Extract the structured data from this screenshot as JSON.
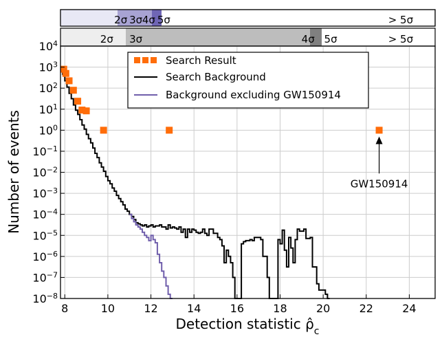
{
  "chart_data": {
    "type": "step",
    "xlabel": "Detection statistic ρ̂",
    "xlabel_subscript": "c",
    "ylabel": "Number of events",
    "xlim": [
      7.8,
      25.2
    ],
    "ylim_log10": [
      -8,
      4
    ],
    "x_ticks": [
      8,
      10,
      12,
      14,
      16,
      18,
      20,
      22,
      24
    ],
    "x_tick_labels": [
      "8",
      "10",
      "12",
      "14",
      "16",
      "18",
      "20",
      "22",
      "24"
    ],
    "y_ticks_log10": [
      -8,
      -7,
      -6,
      -5,
      -4,
      -3,
      -2,
      -1,
      0,
      1,
      2,
      3,
      4
    ],
    "y_tick_base": "10",
    "y_tick_exponents": [
      "−8",
      "−7",
      "−6",
      "−5",
      "−4",
      "−3",
      "−2",
      "−1",
      "0",
      "1",
      "2",
      "3",
      "4"
    ],
    "grid": true,
    "legend_position": "top-center",
    "series": [
      {
        "name": "Search Result",
        "kind": "scatter",
        "color": "#ff6d0a",
        "marker": "square",
        "points": [
          {
            "x": 7.95,
            "y_log10": 2.9
          },
          {
            "x": 8.05,
            "y_log10": 2.7
          },
          {
            "x": 8.2,
            "y_log10": 2.35
          },
          {
            "x": 8.4,
            "y_log10": 1.9
          },
          {
            "x": 8.6,
            "y_log10": 1.38
          },
          {
            "x": 8.8,
            "y_log10": 0.96
          },
          {
            "x": 9.0,
            "y_log10": 0.92
          },
          {
            "x": 9.8,
            "y_log10": 0.0
          },
          {
            "x": 12.85,
            "y_log10": 0.0
          },
          {
            "x": 22.6,
            "y_log10": 0.0
          }
        ]
      },
      {
        "name": "Search Background",
        "kind": "step",
        "color": "#000000",
        "edges": [
          7.8,
          7.9,
          8.0,
          8.1,
          8.2,
          8.3,
          8.4,
          8.5,
          8.6,
          8.7,
          8.8,
          8.9,
          9.0,
          9.1,
          9.2,
          9.3,
          9.4,
          9.5,
          9.6,
          9.7,
          9.8,
          9.9,
          10.0,
          10.1,
          10.2,
          10.3,
          10.4,
          10.5,
          10.6,
          10.7,
          10.8,
          10.9,
          11.0,
          11.1,
          11.2,
          11.3,
          11.4,
          11.5,
          11.6,
          11.7,
          11.8,
          11.9,
          12.0,
          12.1,
          12.2,
          12.3,
          12.4,
          12.5,
          12.6,
          12.7,
          12.8,
          12.9,
          13.0,
          13.1,
          13.2,
          13.3,
          13.4,
          13.5,
          13.6,
          13.7,
          13.8,
          13.9,
          14.0,
          14.1,
          14.2,
          14.3,
          14.4,
          14.5,
          14.6,
          14.7,
          14.8,
          14.9,
          15.0,
          15.1,
          15.2,
          15.3,
          15.4,
          15.5,
          15.6,
          15.7,
          15.8,
          15.9,
          16.0,
          16.1,
          16.2,
          16.3,
          16.4,
          16.5,
          16.6,
          16.7,
          16.8,
          16.9,
          17.0,
          17.1,
          17.2,
          17.3,
          17.4,
          17.5,
          17.6,
          17.7,
          17.8,
          17.9,
          18.0,
          18.1,
          18.2,
          18.3,
          18.4,
          18.5,
          18.6,
          18.7,
          18.8,
          18.9,
          19.0,
          19.1,
          19.2,
          19.3,
          19.4,
          19.5,
          19.6,
          19.7,
          19.8,
          19.9,
          20.0,
          20.1,
          20.2,
          20.3
        ],
        "values_log10": [
          2.9,
          2.65,
          2.35,
          2.05,
          1.75,
          1.5,
          1.2,
          0.95,
          0.75,
          0.5,
          0.25,
          0.05,
          -0.2,
          -0.4,
          -0.6,
          -0.85,
          -1.1,
          -1.3,
          -1.55,
          -1.75,
          -1.95,
          -2.2,
          -2.4,
          -2.55,
          -2.75,
          -2.9,
          -3.1,
          -3.25,
          -3.4,
          -3.55,
          -3.75,
          -3.85,
          -4.0,
          -4.1,
          -4.25,
          -4.4,
          -4.45,
          -4.5,
          -4.55,
          -4.5,
          -4.6,
          -4.55,
          -4.5,
          -4.6,
          -4.55,
          -4.55,
          -4.5,
          -4.6,
          -4.6,
          -4.7,
          -4.5,
          -4.65,
          -4.6,
          -4.65,
          -4.7,
          -4.6,
          -4.85,
          -4.7,
          -5.1,
          -4.7,
          -4.85,
          -4.7,
          -4.75,
          -4.85,
          -4.9,
          -4.85,
          -4.7,
          -4.9,
          -5.0,
          -4.7,
          -4.7,
          -4.9,
          -4.9,
          -5.1,
          -5.2,
          -5.5,
          -6.3,
          -5.7,
          -6.0,
          -6.3,
          -7.0,
          -8.2,
          -8.2,
          -8.2,
          -5.4,
          -5.3,
          -5.25,
          -5.25,
          -5.2,
          -5.25,
          -5.1,
          -5.1,
          -5.1,
          -5.2,
          -6.0,
          -6.0,
          -7.0,
          -8.2,
          -8.2,
          -8.2,
          -8.2,
          -5.2,
          -5.4,
          -4.75,
          -5.7,
          -6.5,
          -5.1,
          -5.6,
          -6.3,
          -5.2,
          -4.7,
          -4.8,
          -4.8,
          -4.7,
          -5.15,
          -5.15,
          -5.1,
          -6.5,
          -6.5,
          -7.3,
          -7.6,
          -7.6,
          -7.6,
          -7.8,
          -8.2
        ]
      },
      {
        "name": "Background excluding GW150914",
        "kind": "step",
        "color": "#6f5eab",
        "edges": [
          11.0,
          11.1,
          11.2,
          11.3,
          11.4,
          11.5,
          11.6,
          11.7,
          11.8,
          11.9,
          12.0,
          12.1,
          12.2,
          12.3,
          12.4,
          12.5,
          12.6,
          12.7,
          12.8,
          12.9
        ],
        "values_log10": [
          -4.0,
          -4.2,
          -4.35,
          -4.5,
          -4.6,
          -4.7,
          -4.85,
          -5.0,
          -5.1,
          -5.25,
          -5.0,
          -5.2,
          -5.35,
          -5.9,
          -6.3,
          -6.7,
          -7.0,
          -7.4,
          -7.8,
          -8.2
        ]
      }
    ],
    "significance_bands": [
      {
        "row": "top",
        "levels": [
          {
            "label": "2σ",
            "x": 10.6
          },
          {
            "label": "3σ",
            "x": 11.3
          },
          {
            "label": "4σ",
            "x": 11.9
          },
          {
            "label": "5σ",
            "x": 12.6
          },
          {
            "label": "> 5σ",
            "x": 23.6
          }
        ]
      },
      {
        "row": "bottom",
        "levels": [
          {
            "label": "2σ",
            "x": 9.95
          },
          {
            "label": "3σ",
            "x": 11.3
          },
          {
            "label": "4σ",
            "x": 19.3
          },
          {
            "label": "5σ",
            "x": 20.35
          },
          {
            "label": "> 5σ",
            "x": 23.6
          }
        ]
      }
    ],
    "annotation": {
      "text": "GW150914",
      "x": 22.6,
      "y_log10": -2.45,
      "arrow_to_y_log10": -0.3
    }
  }
}
